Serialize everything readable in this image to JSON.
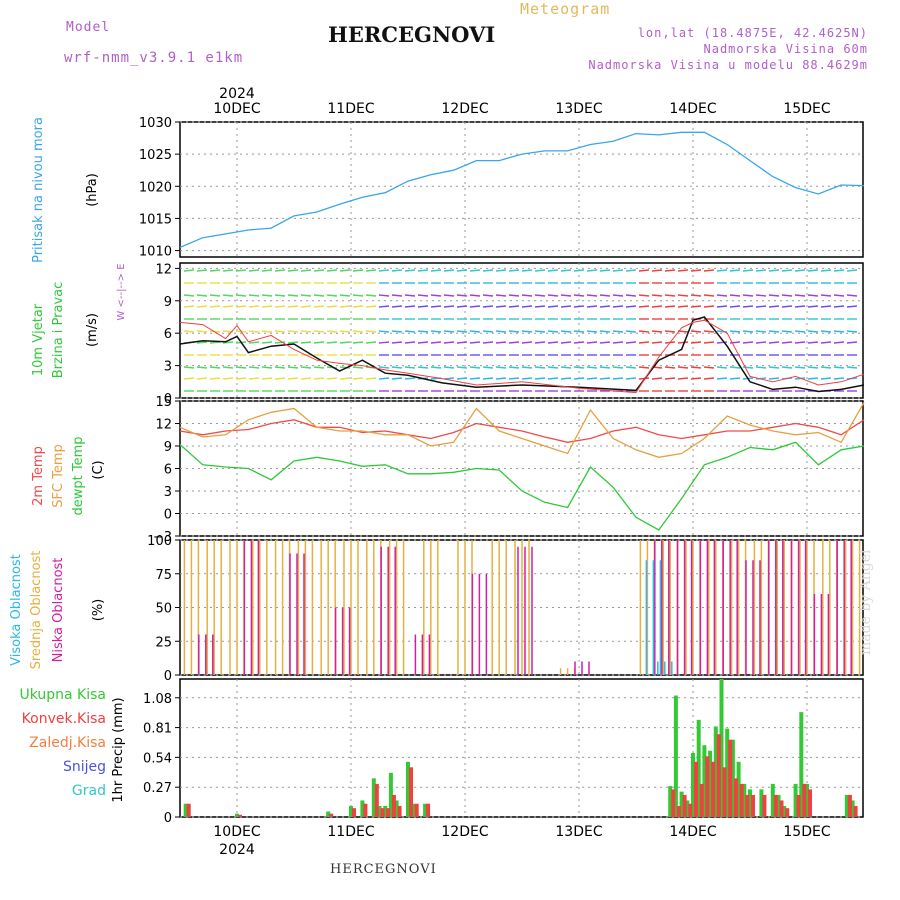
{
  "header": {
    "model_label": "Model",
    "model_name": "wrf-nmm_v3.9.1  e1km",
    "title": "HERCEGNOVI",
    "meteogram": "Meteogram",
    "lonlat": "lon,lat (18.4875E, 42.4625N)",
    "elevation": "Nadmorska Visina 60m",
    "model_elevation": "Nadmorska Visina u modelu 88.4629m"
  },
  "footer": {
    "station": "HERCEGNOVI",
    "credit": "made by Angel"
  },
  "colors": {
    "pressure": "#3aa6e8",
    "temp2m": "#f04a4a",
    "sfc_temp": "#e6a040",
    "dewpt": "#2fc83a",
    "high_cloud": "#2ab8e8",
    "mid_cloud": "#e6b040",
    "low_cloud": "#d020a0",
    "total_precip": "#34c934",
    "conv_precip": "#f04040",
    "wind_obs": "#111111"
  },
  "chart_data": [
    {
      "type": "line",
      "panel": "pressure",
      "ylabel_side": "Pritisak na nivou mora",
      "unit": "(hPa)",
      "xlabel_top_year": "2024",
      "days": [
        "10DEC",
        "11DEC",
        "12DEC",
        "13DEC",
        "14DEC",
        "15DEC"
      ],
      "yticks": [
        "1030",
        "1025",
        "1020",
        "1015",
        "1010"
      ],
      "ylim": [
        1009,
        1030
      ],
      "x": [
        0,
        0.2,
        0.4,
        0.6,
        0.8,
        1.0,
        1.2,
        1.4,
        1.6,
        1.8,
        2.0,
        2.2,
        2.4,
        2.6,
        2.8,
        3.0,
        3.2,
        3.4,
        3.6,
        3.8,
        4.0,
        4.2,
        4.4,
        4.6,
        4.8,
        5.0,
        5.2,
        5.4,
        5.6,
        5.8,
        6.0
      ],
      "values": [
        1010.5,
        1012,
        1012.6,
        1013.2,
        1013.5,
        1015.4,
        1016.0,
        1017.2,
        1018.3,
        1019.0,
        1020.8,
        1021.8,
        1022.5,
        1024.0,
        1024.0,
        1025.0,
        1025.5,
        1025.5,
        1026.5,
        1027.0,
        1028.2,
        1028.0,
        1028.4,
        1028.4,
        1026.5,
        1024.0,
        1021.5,
        1019.8,
        1018.8,
        1020.2,
        1020.1
      ]
    },
    {
      "type": "line",
      "panel": "wind",
      "ylabel_side": "10m Vjetar",
      "ylabel_side2": "Brzina i Pravac",
      "unit": "(m/s)",
      "compass": "W  <--|-->  E",
      "yticks": [
        "12",
        "9",
        "6",
        "3",
        "0"
      ],
      "ylim": [
        0,
        12.5
      ],
      "x": [
        0,
        0.2,
        0.4,
        0.5,
        0.6,
        0.8,
        1.0,
        1.2,
        1.4,
        1.6,
        1.8,
        2.0,
        2.3,
        2.6,
        3.0,
        3.5,
        4.0,
        4.2,
        4.4,
        4.5,
        4.6,
        4.8,
        5.0,
        5.2,
        5.4,
        5.6,
        5.8,
        6.0
      ],
      "series": [
        {
          "values": [
            5,
            5.3,
            5.2,
            5.7,
            4.2,
            4.8,
            5,
            3.7,
            2.5,
            3.5,
            2.3,
            2.1,
            1.4,
            1.0,
            1.2,
            1.0,
            0.7,
            3.5,
            4.5,
            7.2,
            7.5,
            4.8,
            1.5,
            0.8,
            1.0,
            0.6,
            0.8,
            1.2
          ]
        },
        {
          "values": [
            7,
            6.8,
            5.5,
            6.7,
            5.2,
            5.8,
            4.5,
            3.5,
            3.2,
            3.0,
            2.6,
            2.3,
            1.8,
            1.2,
            1.5,
            0.9,
            0.5,
            3.8,
            6.5,
            7.0,
            7.2,
            6.0,
            2.0,
            1.5,
            2.0,
            1.2,
            1.5,
            2.2
          ]
        }
      ]
    },
    {
      "type": "line",
      "panel": "temperature",
      "ylabel_side": "2m Temp",
      "ylabel_side2": "SFC Temp",
      "ylabel_side3": "dewpt Temp",
      "unit": "(C)",
      "yticks": [
        "15",
        "12",
        "9",
        "6",
        "3",
        "0",
        "−3"
      ],
      "ylim": [
        -3,
        15
      ],
      "x": [
        0,
        0.2,
        0.4,
        0.6,
        0.8,
        1.0,
        1.2,
        1.4,
        1.6,
        1.8,
        2.0,
        2.2,
        2.4,
        2.6,
        2.8,
        3.0,
        3.2,
        3.4,
        3.6,
        3.8,
        4.0,
        4.2,
        4.4,
        4.6,
        4.8,
        5.0,
        5.2,
        5.4,
        5.6,
        5.8,
        6.0
      ],
      "series": [
        {
          "name": "2m Temp",
          "values": [
            11,
            10.5,
            11.0,
            11.2,
            12.0,
            12.5,
            11.5,
            11.5,
            10.8,
            11.0,
            10.5,
            10.0,
            10.8,
            12.0,
            11.5,
            11.0,
            10.2,
            9.5,
            10.0,
            11.0,
            11.5,
            10.5,
            10.0,
            10.5,
            11.0,
            11.0,
            11.5,
            12.0,
            11.5,
            10.5,
            12.5
          ]
        },
        {
          "name": "SFC Temp",
          "values": [
            11.5,
            10.2,
            10.5,
            12.5,
            13.5,
            14.0,
            11.5,
            11.0,
            11.0,
            10.5,
            10.5,
            9.0,
            9.5,
            14.0,
            11.0,
            10.0,
            9.0,
            8.0,
            13.8,
            10.0,
            8.5,
            7.5,
            8.0,
            10.0,
            13.0,
            11.8,
            11.0,
            10.5,
            10.8,
            9.5,
            14.8
          ]
        },
        {
          "name": "dewpt Temp",
          "values": [
            9.2,
            6.5,
            6.2,
            6.0,
            4.5,
            7.0,
            7.5,
            7.0,
            6.3,
            6.5,
            5.3,
            5.3,
            5.5,
            6.0,
            5.8,
            3.0,
            1.5,
            0.8,
            6.2,
            3.5,
            -0.5,
            -2.2,
            2.0,
            6.5,
            7.5,
            8.8,
            8.5,
            9.5,
            6.5,
            8.5,
            9.0
          ]
        }
      ]
    },
    {
      "type": "bar",
      "panel": "cloud",
      "ylabel_side": "Visoka Oblacnost",
      "ylabel_side2": "Srednja Oblacnost",
      "ylabel_side3": "Niska Oblacnost",
      "unit": "(%)",
      "yticks": [
        "100",
        "75",
        "50",
        "25",
        "0"
      ],
      "ylim": [
        0,
        100
      ],
      "series": [
        {
          "name": "Srednja Oblacnost",
          "x": [
            0.1,
            0.3,
            0.5,
            0.7,
            0.9,
            1.1,
            1.3,
            1.5,
            1.7,
            1.9,
            2.2,
            2.5,
            2.8,
            3.0,
            3.4,
            4.1,
            4.3,
            4.5,
            4.7,
            4.9,
            5.1,
            5.3,
            5.5,
            5.7,
            5.9
          ],
          "values": [
            100,
            100,
            100,
            100,
            100,
            100,
            100,
            100,
            100,
            100,
            100,
            100,
            100,
            100,
            5,
            100,
            100,
            100,
            100,
            100,
            100,
            100,
            100,
            100,
            100
          ]
        },
        {
          "name": "Niska Oblacnost",
          "x": [
            0.2,
            0.6,
            1.0,
            1.4,
            1.8,
            2.1,
            2.6,
            3.0,
            3.5,
            4.2,
            4.4,
            4.6,
            4.8,
            5.0,
            5.2,
            5.4,
            5.6,
            5.8
          ],
          "values": [
            30,
            100,
            90,
            50,
            95,
            30,
            75,
            95,
            10,
            100,
            100,
            100,
            100,
            85,
            100,
            100,
            60,
            100
          ]
        },
        {
          "name": "Visoka Oblacnost",
          "x": [
            4.1,
            4.2
          ],
          "values": [
            85,
            10
          ]
        }
      ]
    },
    {
      "type": "bar",
      "panel": "precip",
      "unit": "1hr Precip (mm)",
      "legend": [
        "Ukupna Kisa",
        "Konvek.Kisa",
        "Zaledj.Kisa",
        "Snijeg",
        "Grad"
      ],
      "yticks": [
        "1.08",
        "0.81",
        "0.54",
        "0.27",
        "0"
      ],
      "ylim": [
        0,
        1.25
      ],
      "days_bottom": [
        "10DEC",
        "11DEC",
        "12DEC",
        "13DEC",
        "14DEC",
        "15DEC"
      ],
      "xlabel_bottom_year": "2024",
      "x": [
        0.05,
        0.5,
        1.3,
        1.5,
        1.6,
        1.7,
        1.75,
        1.8,
        1.85,
        1.9,
        2.0,
        2.05,
        2.15,
        4.3,
        4.35,
        4.4,
        4.45,
        4.5,
        4.55,
        4.6,
        4.65,
        4.7,
        4.75,
        4.8,
        4.85,
        4.9,
        4.95,
        5.0,
        5.1,
        5.2,
        5.25,
        5.3,
        5.4,
        5.45,
        5.5,
        5.85,
        5.9
      ],
      "series": [
        {
          "name": "Ukupna Kisa",
          "values": [
            0.12,
            0.03,
            0.05,
            0.1,
            0.15,
            0.35,
            0.1,
            0.1,
            0.4,
            0.15,
            0.5,
            0.12,
            0.12,
            0.28,
            1.1,
            0.23,
            0.15,
            0.58,
            0.88,
            0.65,
            0.6,
            0.82,
            1.25,
            0.8,
            0.7,
            0.5,
            0.3,
            0.25,
            0.25,
            0.3,
            0.2,
            0.1,
            0.3,
            0.95,
            0.3,
            0.2,
            0.15
          ]
        },
        {
          "name": "Konvek.Kisa",
          "values": [
            0.12,
            0.02,
            0.03,
            0.08,
            0.12,
            0.3,
            0.08,
            0.08,
            0.2,
            0.1,
            0.45,
            0.12,
            0.12,
            0.25,
            0.1,
            0.2,
            0.12,
            0.5,
            0.3,
            0.55,
            0.5,
            0.75,
            0.45,
            0.7,
            0.35,
            0.3,
            0.2,
            0.2,
            0.2,
            0.2,
            0.15,
            0.08,
            0.2,
            0.3,
            0.25,
            0.2,
            0.1
          ]
        }
      ]
    }
  ]
}
